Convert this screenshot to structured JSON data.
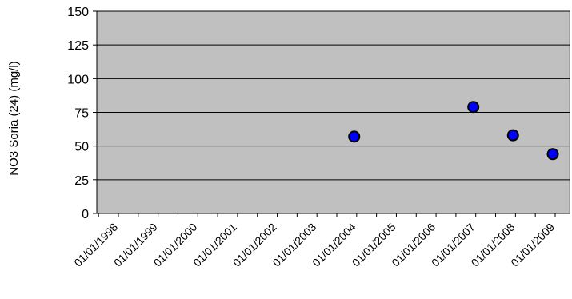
{
  "chart_data": {
    "type": "scatter",
    "title": "",
    "xlabel": "",
    "ylabel": "NO3 Soria (24) (mg/l)",
    "ylim": [
      0,
      150
    ],
    "yticks": [
      "0",
      "25",
      "50",
      "75",
      "100",
      "125",
      "150"
    ],
    "xlim": [
      "1998-01-01",
      "2009-01-01"
    ],
    "xticks": [
      "01/01/1998",
      "01/01/1999",
      "01/01/2000",
      "01/01/2001",
      "01/01/2002",
      "01/01/2003",
      "01/01/2004",
      "01/01/2005",
      "01/01/2006",
      "01/01/2007",
      "01/01/2008",
      "01/01/2009"
    ],
    "grid": true,
    "legend": false,
    "colors": {
      "plot_background": "#c0c0c0",
      "marker_fill": "#0000ff",
      "marker_edge": "#000000",
      "gridline": "#000000"
    },
    "series": [
      {
        "points": [
          {
            "x": "2003-12-10",
            "y": 57
          },
          {
            "x": "2006-12-10",
            "y": 79
          },
          {
            "x": "2007-12-10",
            "y": 58
          },
          {
            "x": "2008-12-10",
            "y": 44
          }
        ]
      }
    ]
  }
}
